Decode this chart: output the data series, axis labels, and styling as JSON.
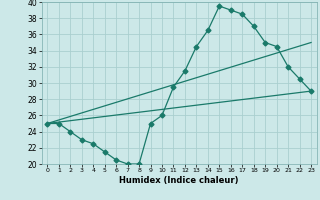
{
  "title": "",
  "xlabel": "Humidex (Indice chaleur)",
  "background_color": "#cce8e8",
  "grid_color": "#aacfcf",
  "line_color": "#1a7a6a",
  "xlim": [
    -0.5,
    23.5
  ],
  "ylim": [
    20,
    40
  ],
  "xticks": [
    0,
    1,
    2,
    3,
    4,
    5,
    6,
    7,
    8,
    9,
    10,
    11,
    12,
    13,
    14,
    15,
    16,
    17,
    18,
    19,
    20,
    21,
    22,
    23
  ],
  "yticks": [
    20,
    22,
    24,
    26,
    28,
    30,
    32,
    34,
    36,
    38,
    40
  ],
  "line1_x": [
    0,
    1,
    2,
    3,
    4,
    5,
    6,
    7,
    8,
    9,
    10,
    11,
    12,
    13,
    14,
    15,
    16,
    17,
    18,
    19,
    20,
    21,
    22,
    23
  ],
  "line1_y": [
    25,
    25,
    24,
    23,
    22.5,
    21.5,
    20.5,
    20,
    20,
    25,
    26,
    29.5,
    31.5,
    34.5,
    36.5,
    39.5,
    39,
    38.5,
    37,
    35,
    34.5,
    32,
    30.5,
    29
  ],
  "line2_x": [
    0,
    23
  ],
  "line2_y": [
    25,
    29
  ],
  "line3_x": [
    0,
    23
  ],
  "line3_y": [
    25,
    35
  ],
  "markersize": 2.5
}
